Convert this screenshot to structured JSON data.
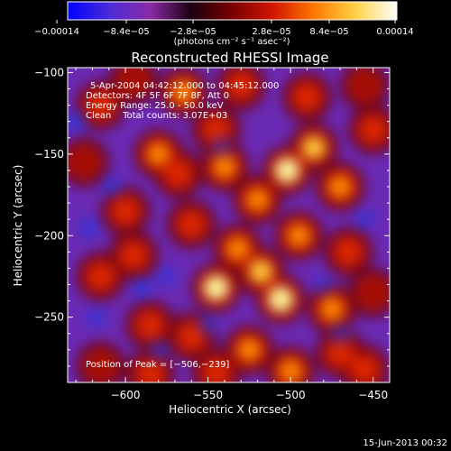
{
  "colorbar": {
    "tick_labels": [
      "−0.00014",
      "−8.4e−05",
      "−2.8e−05",
      "2.8e−05",
      "8.4e−05",
      "0.00014"
    ],
    "unit_label": "(photons cm⁻² s⁻¹ asec⁻²)",
    "stops": [
      "#0000ff",
      "#4a2bd8",
      "#8a2ba8",
      "#1a0010",
      "#7a0000",
      "#d21500",
      "#ff7a00",
      "#ffd24a",
      "#ffffff"
    ]
  },
  "chart_data": {
    "type": "heatmap",
    "title": "Reconstructed RHESSI Image",
    "xlabel": "Heliocentric X (arcsec)",
    "ylabel": "Heliocentric Y (arcsec)",
    "xlim": [
      -635,
      -440
    ],
    "ylim": [
      -290,
      -97
    ],
    "xticks": [
      -600,
      -550,
      -500,
      -450
    ],
    "yticks": [
      -100,
      -150,
      -200,
      -250
    ],
    "annotations": [
      "5-Apr-2004 04:42:12.000 to 04:45:12.000",
      "Detectors: 4F 5F 6F 7F 8F, Att 0",
      "Energy Range: 25.0 - 50.0 keV",
      "Clean    Total counts: 3.07E+03"
    ],
    "peak_label": "Position of Peak = [−506,−239]",
    "peak": [
      -506,
      -239
    ],
    "blobs": [
      {
        "x": -615,
        "y": -120,
        "a": 0.55
      },
      {
        "x": -595,
        "y": -105,
        "a": 0.35
      },
      {
        "x": -565,
        "y": -112,
        "a": 0.65
      },
      {
        "x": -530,
        "y": -108,
        "a": 0.45
      },
      {
        "x": -490,
        "y": -115,
        "a": 0.55
      },
      {
        "x": -455,
        "y": -108,
        "a": 0.35
      },
      {
        "x": -545,
        "y": -135,
        "a": 0.5
      },
      {
        "x": -580,
        "y": -150,
        "a": 0.7
      },
      {
        "x": -568,
        "y": -162,
        "a": 0.55
      },
      {
        "x": -540,
        "y": -158,
        "a": 0.6
      },
      {
        "x": -502,
        "y": -160,
        "a": 0.95
      },
      {
        "x": -486,
        "y": -146,
        "a": 0.85
      },
      {
        "x": -470,
        "y": -170,
        "a": 0.6
      },
      {
        "x": -520,
        "y": -178,
        "a": 0.7
      },
      {
        "x": -600,
        "y": -185,
        "a": 0.45
      },
      {
        "x": -560,
        "y": -193,
        "a": 0.55
      },
      {
        "x": -532,
        "y": -208,
        "a": 0.72
      },
      {
        "x": -495,
        "y": -200,
        "a": 0.62
      },
      {
        "x": -465,
        "y": -210,
        "a": 0.5
      },
      {
        "x": -615,
        "y": -225,
        "a": 0.55
      },
      {
        "x": -595,
        "y": -212,
        "a": 0.45
      },
      {
        "x": -545,
        "y": -232,
        "a": 0.9
      },
      {
        "x": -518,
        "y": -222,
        "a": 0.75
      },
      {
        "x": -506,
        "y": -239,
        "a": 1.0
      },
      {
        "x": -475,
        "y": -245,
        "a": 0.62
      },
      {
        "x": -585,
        "y": -255,
        "a": 0.5
      },
      {
        "x": -560,
        "y": -262,
        "a": 0.45
      },
      {
        "x": -525,
        "y": -270,
        "a": 0.6
      },
      {
        "x": -470,
        "y": -272,
        "a": 0.58
      },
      {
        "x": -615,
        "y": -280,
        "a": 0.4
      },
      {
        "x": -585,
        "y": -285,
        "a": 0.5
      },
      {
        "x": -545,
        "y": -284,
        "a": 0.55
      },
      {
        "x": -500,
        "y": -283,
        "a": 0.65
      },
      {
        "x": -455,
        "y": -282,
        "a": 0.45
      },
      {
        "x": -450,
        "y": -135,
        "a": 0.45
      },
      {
        "x": -450,
        "y": -235,
        "a": 0.4
      },
      {
        "x": -625,
        "y": -155,
        "a": 0.35
      }
    ],
    "dips": [
      {
        "x": -630,
        "y": -130,
        "a": 0.6
      },
      {
        "x": -608,
        "y": -170,
        "a": 0.5
      },
      {
        "x": -622,
        "y": -195,
        "a": 0.55
      },
      {
        "x": -575,
        "y": -225,
        "a": 0.45
      },
      {
        "x": -618,
        "y": -250,
        "a": 0.5
      },
      {
        "x": -590,
        "y": -232,
        "a": 0.6
      },
      {
        "x": -580,
        "y": -270,
        "a": 0.4
      },
      {
        "x": -550,
        "y": -255,
        "a": 0.4
      },
      {
        "x": -480,
        "y": -230,
        "a": 0.35
      },
      {
        "x": -455,
        "y": -190,
        "a": 0.45
      },
      {
        "x": -470,
        "y": -260,
        "a": 0.4
      },
      {
        "x": -542,
        "y": -145,
        "a": 0.35
      }
    ]
  },
  "footer": {
    "date": "15-Jun-2013 00:32"
  }
}
